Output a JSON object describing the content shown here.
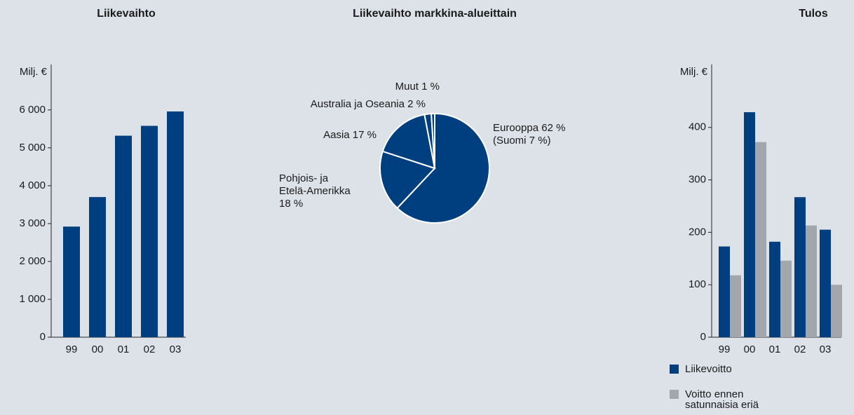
{
  "chart_data": [
    {
      "type": "bar",
      "title": "Liikevaihto",
      "ylabel": "Milj. €",
      "categories": [
        "99",
        "00",
        "01",
        "02",
        "03"
      ],
      "values": [
        2920,
        3700,
        5320,
        5580,
        5960
      ],
      "color": "#003f7f",
      "ylim": [
        0,
        7200
      ],
      "yticks": [
        0,
        {
          "value": 1000,
          "label": "1 000"
        },
        {
          "value": 2000,
          "label": "2 000"
        },
        {
          "value": 3000,
          "label": "3 000"
        },
        {
          "value": 4000,
          "label": "4 000"
        },
        {
          "value": 5000,
          "label": "5 000"
        },
        {
          "value": 6000,
          "label": "6 000"
        }
      ]
    },
    {
      "type": "pie",
      "title": "Liikevaihto markkina-alueittain",
      "label_lines": [
        [
          "Eurooppa 62 %",
          "(Suomi 7 %)"
        ],
        [
          "Pohjois- ja",
          "Etelä-Amerikka",
          "18 %"
        ],
        [
          "Aasia 17 %"
        ],
        [
          "Australia ja Oseania 2 %"
        ],
        [
          "Muut 1 %"
        ]
      ],
      "values": [
        62,
        18,
        17,
        2,
        1
      ],
      "color": "#003f7f"
    },
    {
      "type": "grouped_bar",
      "title": "Tulos",
      "ylabel": "Milj. €",
      "categories": [
        "99",
        "00",
        "01",
        "02",
        "03"
      ],
      "series": [
        {
          "name": "Liikevoitto",
          "color": "#003f7f",
          "values": [
            173,
            429,
            182,
            267,
            205
          ]
        },
        {
          "name": "Voitto ennen satunnaisia eriä",
          "color": "#a2a7ad",
          "values": [
            118,
            372,
            146,
            213,
            100
          ]
        }
      ],
      "ylim": [
        0,
        520
      ],
      "yticks": [
        0,
        100,
        200,
        300,
        400
      ]
    }
  ]
}
